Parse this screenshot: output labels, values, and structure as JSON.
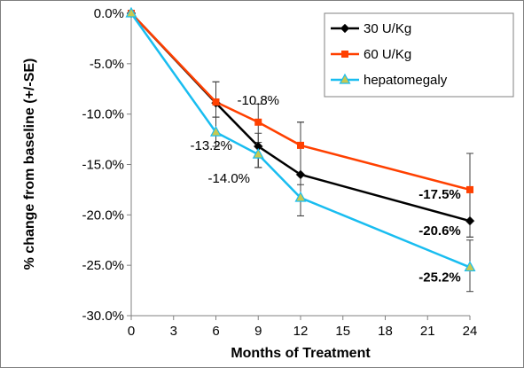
{
  "chart_data": {
    "type": "line",
    "xlabel": "Months of Treatment",
    "ylabel": "% change from baseline (+/-SE)",
    "x_ticks": [
      "0",
      "3",
      "6",
      "9",
      "12",
      "15",
      "18",
      "21",
      "24"
    ],
    "y_ticks": [
      "0.0%",
      "-5.0%",
      "-10.0%",
      "-15.0%",
      "-20.0%",
      "-25.0%",
      "-30.0%"
    ],
    "xlim": [
      0,
      24
    ],
    "ylim": [
      -30,
      0
    ],
    "legend_position": "top-right",
    "series": [
      {
        "name": "30 U/Kg",
        "color": "#000000",
        "marker": "diamond",
        "x": [
          0,
          6,
          9,
          12,
          24
        ],
        "y": [
          0,
          -8.9,
          -13.2,
          -16.0,
          -20.6
        ],
        "err_low": [
          null,
          -10.3,
          -15.3,
          -20.1,
          -22.2
        ],
        "err_high": [
          null,
          -6.8,
          -11.9,
          -10.8,
          -13.9
        ]
      },
      {
        "name": "60 U/Kg",
        "color": "#ff4000",
        "marker": "square",
        "x": [
          0,
          6,
          9,
          12,
          24
        ],
        "y": [
          0,
          -8.8,
          -10.8,
          -13.1,
          -17.5
        ],
        "err_low": [
          null,
          -10.3,
          -15.3,
          -20.1,
          -22.2
        ],
        "err_high": [
          null,
          -6.8,
          -9.0,
          -10.8,
          -13.9
        ]
      },
      {
        "name": "hepatomegaly",
        "color": "#19bdf0",
        "marker": "triangle",
        "x": [
          0,
          6,
          9,
          12,
          24
        ],
        "y": [
          0,
          -11.8,
          -14.0,
          -18.3,
          -25.2
        ],
        "err_low": [
          null,
          -13.2,
          -15.3,
          -20.1,
          -27.6
        ],
        "err_high": [
          null,
          -10.3,
          -12.8,
          -17.0,
          -22.5
        ]
      }
    ],
    "annotations": [
      {
        "text": "-10.8%",
        "x": 9,
        "y": -10.8,
        "bold": false
      },
      {
        "text": "-13.2%",
        "x": 9,
        "y": -13.2,
        "bold": false
      },
      {
        "text": "-14.0%",
        "x": 9,
        "y": -14.0,
        "bold": false
      },
      {
        "text": "-17.5%",
        "x": 24,
        "y": -17.5,
        "bold": true
      },
      {
        "text": "-20.6%",
        "x": 24,
        "y": -20.6,
        "bold": true
      },
      {
        "text": "-25.2%",
        "x": 24,
        "y": -25.2,
        "bold": true
      }
    ]
  }
}
